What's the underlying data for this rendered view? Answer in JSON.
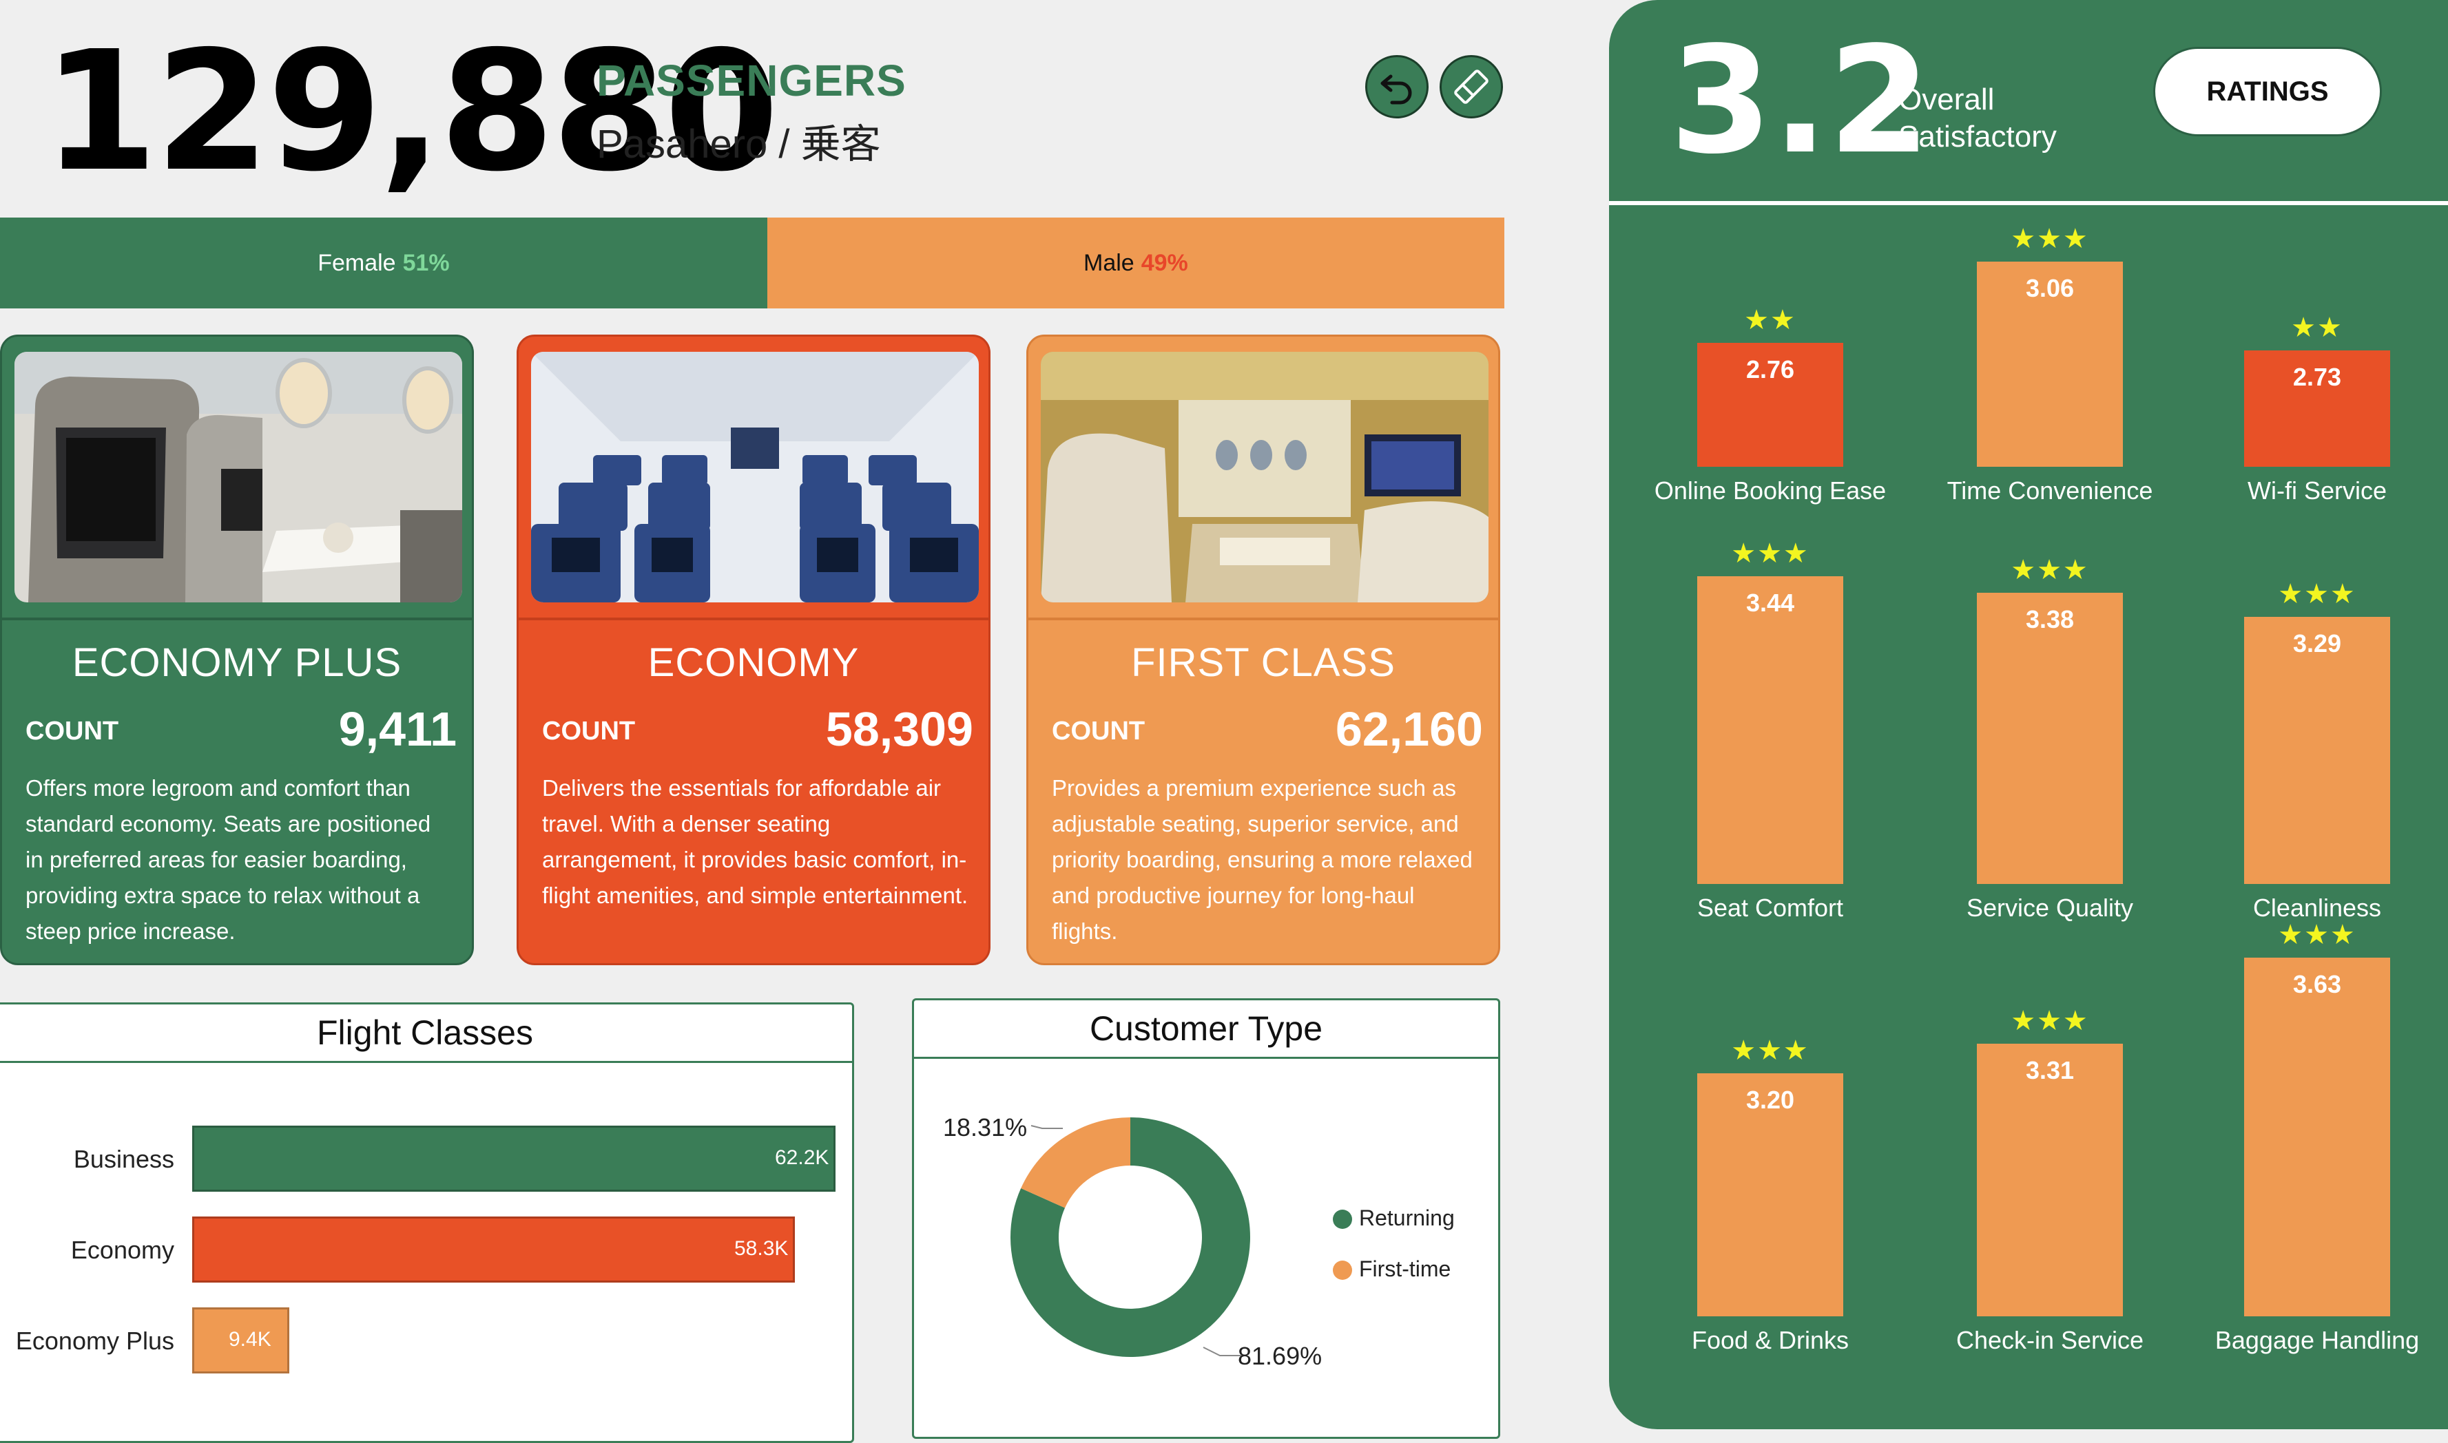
{
  "header": {
    "total_passengers": "129,880",
    "title": "PASSENGERS",
    "subtitle": "Pasahero / 乗客",
    "buttons": [
      {
        "icon": "undo-arrow-icon"
      },
      {
        "icon": "eraser-icon"
      }
    ]
  },
  "gender": {
    "female_label": "Female",
    "female_pct": "51%",
    "female_value": 0.51,
    "male_label": "Male",
    "male_pct": "49%",
    "male_value": 0.49
  },
  "classes": [
    {
      "title": "ECONOMY PLUS",
      "count_label": "COUNT",
      "count": "9,411",
      "description": "Offers more legroom and comfort than standard economy. Seats are positioned in preferred areas for easier boarding, providing extra space to relax without a steep price increase.",
      "color": "#3a7d57",
      "photo": "economy-plus-seat-photo"
    },
    {
      "title": "ECONOMY",
      "count_label": "COUNT",
      "count": "58,309",
      "description": "Delivers the essentials for affordable air travel. With a denser seating arrangement, it provides basic comfort, in-flight amenities, and simple entertainment.",
      "color": "#e85127",
      "photo": "economy-cabin-photo"
    },
    {
      "title": "FIRST CLASS",
      "count_label": "COUNT",
      "count": "62,160",
      "description": "Provides a premium experience such as adjustable seating, superior service, and priority boarding, ensuring a more relaxed and productive journey for long-haul flights.",
      "color": "#ef9a52",
      "photo": "first-class-suite-photo"
    }
  ],
  "flight_classes": {
    "title": "Flight Classes",
    "chart_data": {
      "type": "bar",
      "orientation": "horizontal",
      "categories": [
        "Business",
        "Economy",
        "Economy Plus"
      ],
      "values": [
        62.2,
        58.3,
        9.4
      ],
      "value_labels": [
        "62.2K",
        "58.3K",
        "9.4K"
      ],
      "unit": "K",
      "colors": [
        "#3a7d57",
        "#e85127",
        "#ef9a52"
      ],
      "xlim": [
        0,
        62.2
      ]
    }
  },
  "customer_type": {
    "title": "Customer Type",
    "chart_data": {
      "type": "pie",
      "style": "donut",
      "categories": [
        "Returning",
        "First-time"
      ],
      "values": [
        81.69,
        18.31
      ],
      "value_labels": [
        "81.69%",
        "18.31%"
      ],
      "colors": [
        "#3a7d57",
        "#ef9a52"
      ],
      "legend": "right"
    }
  },
  "ratings": {
    "overall_value": "3.2",
    "overall_label_line1": "Overall",
    "overall_label_line2": "Satisfactory",
    "button_label": "RATINGS",
    "chart_data": {
      "type": "bar",
      "items": [
        {
          "name": "Online Booking Ease",
          "value": 2.76,
          "label": "2.76",
          "stars": "★★",
          "color": "#e85127"
        },
        {
          "name": "Time Convenience",
          "value": 3.06,
          "label": "3.06",
          "stars": "★★★",
          "color": "#ef9a52"
        },
        {
          "name": "Wi-fi Service",
          "value": 2.73,
          "label": "2.73",
          "stars": "★★",
          "color": "#e85127"
        },
        {
          "name": "Seat Comfort",
          "value": 3.44,
          "label": "3.44",
          "stars": "★★★",
          "color": "#ef9a52"
        },
        {
          "name": "Service Quality",
          "value": 3.38,
          "label": "3.38",
          "stars": "★★★",
          "color": "#ef9a52"
        },
        {
          "name": "Cleanliness",
          "value": 3.29,
          "label": "3.29",
          "stars": "★★★",
          "color": "#ef9a52"
        },
        {
          "name": "Food & Drinks",
          "value": 3.2,
          "label": "3.20",
          "stars": "★★★",
          "color": "#ef9a52"
        },
        {
          "name": "Check-in Service",
          "value": 3.31,
          "label": "3.31",
          "stars": "★★★",
          "color": "#ef9a52"
        },
        {
          "name": "Baggage Handling",
          "value": 3.63,
          "label": "3.63",
          "stars": "★★★",
          "color": "#ef9a52"
        }
      ]
    }
  }
}
